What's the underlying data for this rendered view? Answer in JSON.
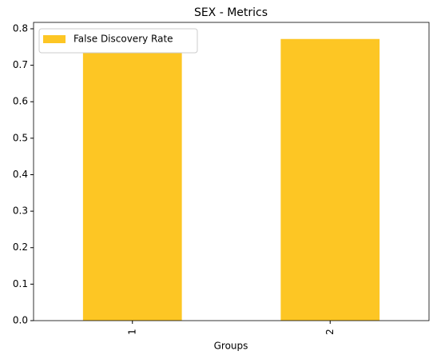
{
  "chart_data": {
    "type": "bar",
    "title": "SEX - Metrics",
    "x_label": "Groups",
    "categories": [
      "1",
      "2"
    ],
    "series": [
      {
        "name": "False Discovery Rate",
        "color": "#fdc624",
        "values": [
          0.735,
          0.772
        ]
      }
    ],
    "ylim": [
      0,
      0.8175
    ],
    "yticks": [
      {
        "value": 0,
        "label": "0.0"
      },
      0.1,
      0.2,
      0.3,
      0.4,
      0.5,
      0.6,
      0.7,
      0.8
    ],
    "legend": "upper left",
    "grid": false
  }
}
